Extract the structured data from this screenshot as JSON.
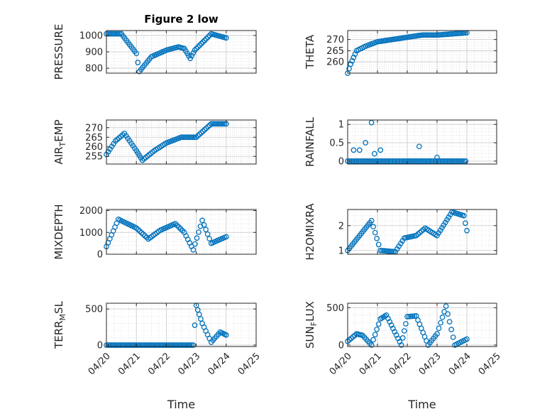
{
  "figure_title": "Figure 2 low",
  "x_label": "Time",
  "x_tick_labels": [
    "04/20",
    "04/21",
    "04/22",
    "04/23",
    "04/24",
    "04/25"
  ],
  "colors": {
    "marker": "#0072BD",
    "axis": "#262626",
    "grid": "#b4b4b4"
  },
  "chart_data": [
    {
      "type": "scatter",
      "title": "Figure 2 low",
      "ylabel": "PRESSURE",
      "xlabel": "",
      "xlim": [
        "04/20",
        "04/25"
      ],
      "ylim": [
        770,
        1030
      ],
      "yticks": [
        800,
        900,
        1000
      ],
      "grid": true,
      "x": [
        "04/20",
        "04/20.5",
        "04/21",
        "04/21.1",
        "04/21.5",
        "04/22",
        "04/22.4",
        "04/22.6",
        "04/22.8",
        "04/22.95",
        "04/23.5",
        "04/24"
      ],
      "y": [
        1010,
        1010,
        890,
        780,
        870,
        910,
        930,
        920,
        860,
        910,
        1010,
        985
      ]
    },
    {
      "type": "scatter",
      "ylabel": "THETA",
      "xlabel": "",
      "xlim": [
        "04/20",
        "04/25"
      ],
      "ylim": [
        255,
        274
      ],
      "yticks": [
        260,
        265,
        270
      ],
      "grid": true,
      "x": [
        "04/20",
        "04/20.1",
        "04/20.3",
        "04/20.6",
        "04/21",
        "04/21.5",
        "04/22",
        "04/22.5",
        "04/23",
        "04/23.5",
        "04/24"
      ],
      "y": [
        255,
        259,
        265,
        267,
        269,
        270,
        271,
        272,
        272,
        272.5,
        273
      ]
    },
    {
      "type": "scatter",
      "ylabel": "AIR_TEMP",
      "xlabel": "",
      "xlim": [
        "04/20",
        "04/25"
      ],
      "ylim": [
        251,
        274
      ],
      "yticks": [
        255,
        260,
        265,
        270
      ],
      "grid": true,
      "x": [
        "04/20",
        "04/20.3",
        "04/20.6",
        "04/21",
        "04/21.2",
        "04/21.6",
        "04/22",
        "04/22.5",
        "04/23",
        "04/23.5",
        "04/24"
      ],
      "y": [
        256,
        263,
        267,
        258,
        253,
        258,
        262,
        265,
        265,
        272,
        272
      ]
    },
    {
      "type": "scatter",
      "ylabel": "RAINFALL",
      "xlabel": "",
      "xlim": [
        "04/20",
        "04/25"
      ],
      "ylim": [
        -0.08,
        1.12
      ],
      "yticks": [
        0,
        0.5,
        1
      ],
      "grid": true,
      "x": [
        "04/20.2",
        "04/20.4",
        "04/20.6",
        "04/20.8",
        "04/20.9",
        "04/21.1",
        "04/22.4",
        "04/23"
      ],
      "y": [
        0.3,
        0.3,
        0.5,
        1.05,
        0.2,
        0.3,
        0.4,
        0.1
      ]
    },
    {
      "type": "scatter",
      "ylabel": "MIXDEPTH",
      "xlabel": "",
      "xlim": [
        "04/20",
        "04/25"
      ],
      "ylim": [
        0,
        2050
      ],
      "yticks": [
        0,
        1000,
        2000
      ],
      "grid": true,
      "x": [
        "04/20",
        "04/20.4",
        "04/21",
        "04/21.4",
        "04/21.8",
        "04/22.3",
        "04/22.6",
        "04/22.9",
        "04/23.2",
        "04/23.5",
        "04/24"
      ],
      "y": [
        350,
        1600,
        1200,
        700,
        1100,
        1400,
        1000,
        200,
        1550,
        500,
        800
      ]
    },
    {
      "type": "scatter",
      "ylabel": "H2OMIXRA",
      "xlabel": "",
      "xlim": [
        "04/20",
        "04/25"
      ],
      "ylim": [
        0.85,
        2.65
      ],
      "yticks": [
        1,
        2
      ],
      "grid": true,
      "x": [
        "04/20",
        "04/20.8",
        "04/21.1",
        "04/21.6",
        "04/21.9",
        "04/22.3",
        "04/22.6",
        "04/23",
        "04/23.5",
        "04/23.9",
        "04/24"
      ],
      "y": [
        1.0,
        2.2,
        1.0,
        0.95,
        1.5,
        1.6,
        1.9,
        1.6,
        2.55,
        2.4,
        1.8
      ]
    },
    {
      "type": "scatter",
      "ylabel": "TERR_MSL",
      "xlabel": "Time",
      "xlim": [
        "04/20",
        "04/25"
      ],
      "ylim": [
        -20,
        580
      ],
      "yticks": [
        0,
        500
      ],
      "grid": true,
      "x": [
        "04/20",
        "04/21",
        "04/22",
        "04/22.9",
        "04/23",
        "04/23.2",
        "04/23.5",
        "04/23.8",
        "04/24"
      ],
      "y": [
        0,
        0,
        0,
        0,
        550,
        300,
        40,
        180,
        140
      ]
    },
    {
      "type": "scatter",
      "ylabel": "SUN_FLUX",
      "xlabel": "Time",
      "xlim": [
        "04/20",
        "04/25"
      ],
      "ylim": [
        -20,
        560
      ],
      "yticks": [
        0,
        500
      ],
      "grid": true,
      "x": [
        "04/20",
        "04/20.3",
        "04/20.5",
        "04/20.8",
        "04/21.1",
        "04/21.3",
        "04/21.8",
        "04/22",
        "04/22.3",
        "04/22.7",
        "04/23",
        "04/23.3",
        "04/23.6",
        "04/24"
      ],
      "y": [
        50,
        150,
        130,
        0,
        350,
        400,
        0,
        380,
        390,
        0,
        150,
        520,
        0,
        80
      ]
    }
  ]
}
